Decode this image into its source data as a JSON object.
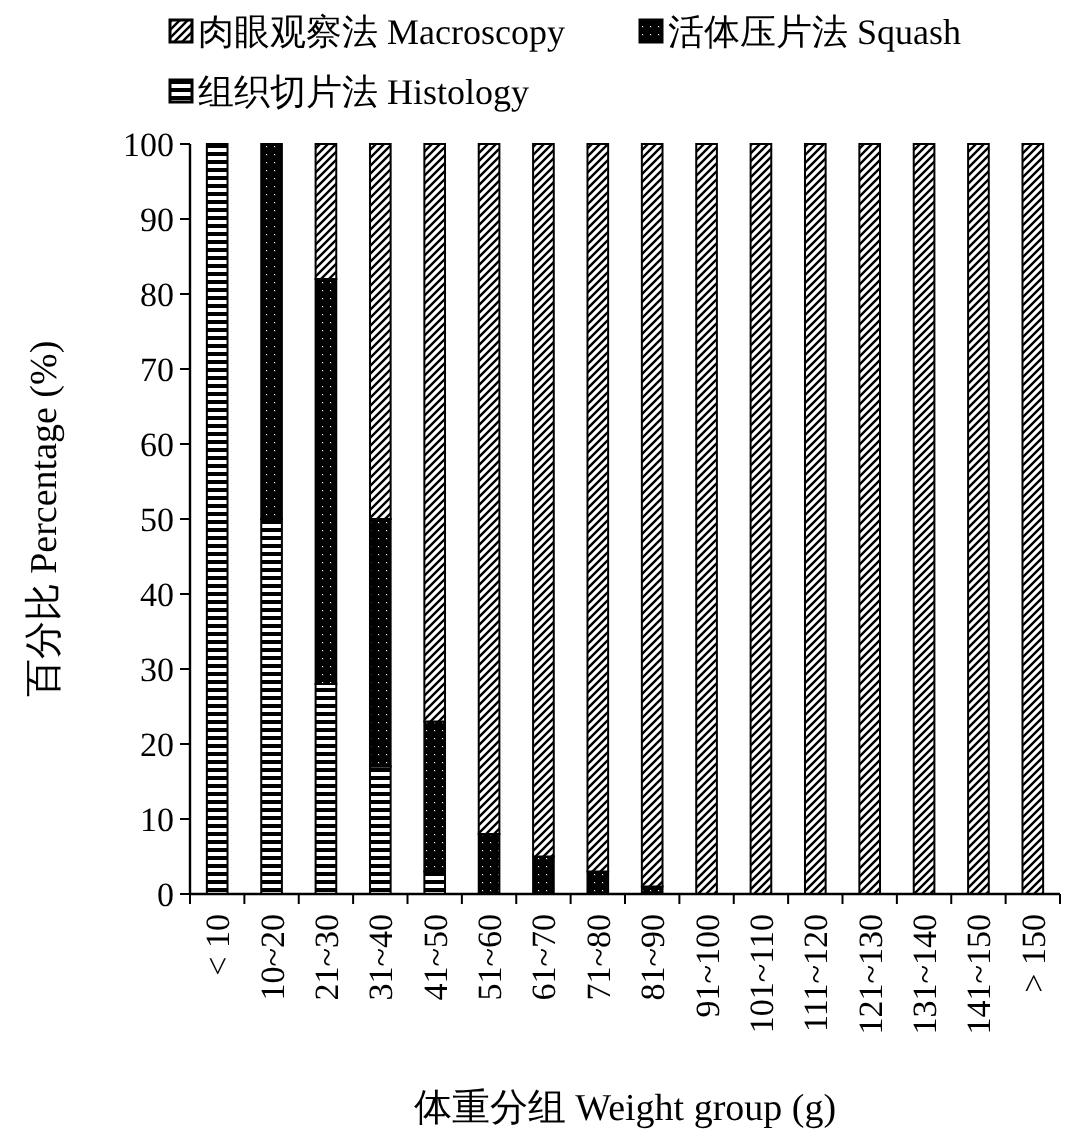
{
  "chart_data": {
    "type": "bar",
    "stacked": true,
    "xlabel": "体重分组 Weight group (g)",
    "ylabel": "百分比 Percentage (%)",
    "categories": [
      "< 10",
      "10~20",
      "21~30",
      "31~40",
      "41~50",
      "51~60",
      "61~70",
      "71~80",
      "81~90",
      "91~100",
      "101~110",
      "111~120",
      "121~130",
      "131~140",
      "141~150",
      "> 150"
    ],
    "series": [
      {
        "name": "组织切片法 Histology",
        "color": "#000000",
        "values": [
          100,
          50,
          28,
          17,
          3,
          0,
          0,
          0,
          0,
          0,
          0,
          0,
          0,
          0,
          0,
          0
        ]
      },
      {
        "name": "活体压片法 Squash",
        "color": "#000000",
        "values": [
          0,
          50,
          54,
          33,
          20,
          8,
          5,
          3,
          1,
          0,
          0,
          0,
          0,
          0,
          0,
          0
        ]
      },
      {
        "name": "肉眼观察法 Macroscopy",
        "color": "#000000",
        "values": [
          0,
          0,
          18,
          50,
          77,
          92,
          95,
          97,
          99,
          100,
          100,
          100,
          100,
          100,
          100,
          100
        ]
      }
    ],
    "ylim": [
      0,
      100
    ],
    "yticks": [
      0,
      10,
      20,
      30,
      40,
      50,
      60,
      70,
      80,
      90,
      100
    ],
    "legend": "top",
    "grid": false
  }
}
